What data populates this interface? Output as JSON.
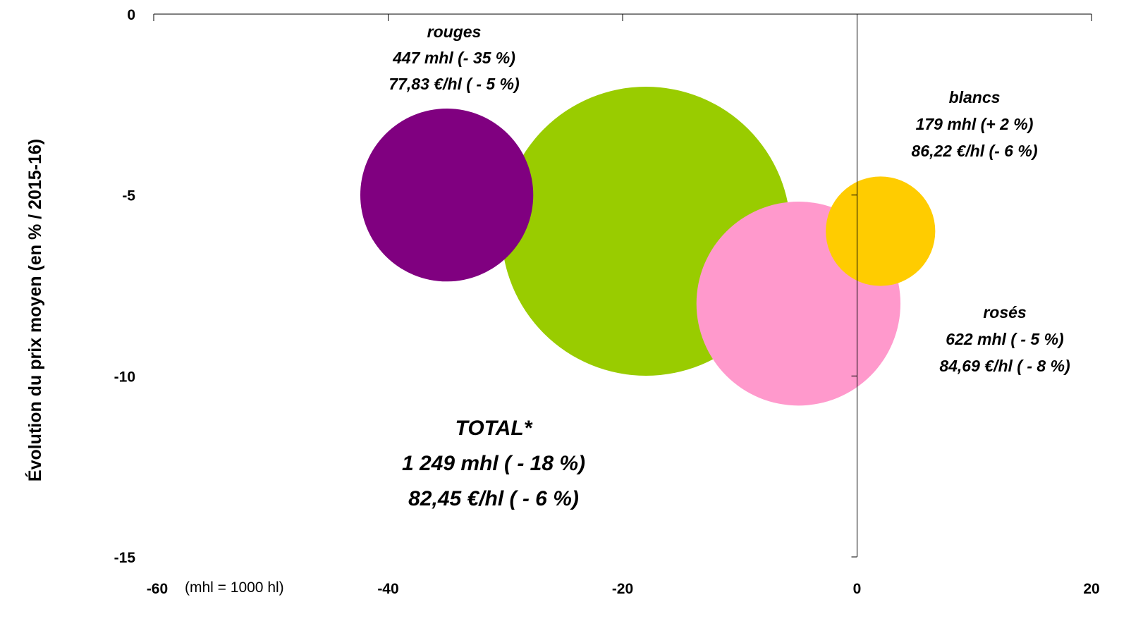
{
  "chart_data": {
    "type": "bubble",
    "title": "",
    "xlabel": "",
    "ylabel": "Évolution du prix moyen (en % / 2015-16)",
    "xlim": [
      -60,
      20
    ],
    "ylim": [
      -15,
      0
    ],
    "x_ticks": [
      "-60",
      "-40",
      "-20",
      "0",
      "20"
    ],
    "y_ticks": [
      "0",
      "-5",
      "-10",
      "-15"
    ],
    "note": "(mhl = 1000 hl)",
    "grid": false,
    "legend": "none",
    "series": [
      {
        "name": "TOTAL*",
        "x": -18,
        "y": -6,
        "volume_mhl": 1249,
        "color": "#99cc00",
        "label_lines": [
          "TOTAL*",
          "1 249 mhl ( - 18 %)",
          "82,45 €/hl ( - 6 %)"
        ]
      },
      {
        "name": "rouges",
        "x": -35,
        "y": -5,
        "volume_mhl": 447,
        "color": "#800080",
        "label_lines": [
          "rouges",
          "447 mhl (- 35 %)",
          "77,83 €/hl ( - 5 %)"
        ]
      },
      {
        "name": "rosés",
        "x": -5,
        "y": -8,
        "volume_mhl": 622,
        "color": "#ff99cc",
        "label_lines": [
          "rosés",
          "622 mhl ( - 5 %)",
          "84,69 €/hl ( - 8 %)"
        ]
      },
      {
        "name": "blancs",
        "x": 2,
        "y": -6,
        "volume_mhl": 179,
        "color": "#ffcc00",
        "label_lines": [
          "blancs",
          "179 mhl (+ 2 %)",
          "86,22 €/hl (- 6 %)"
        ]
      }
    ]
  }
}
